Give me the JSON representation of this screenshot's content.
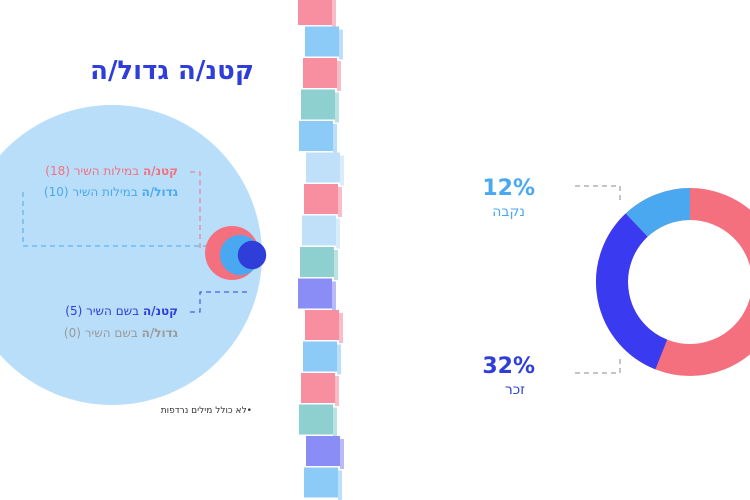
{
  "title": "קטנ/ה גדול/ה",
  "circles": [
    {
      "bold": "קטנ/ה",
      "text": " במילות השיר ",
      "count": 18,
      "count_label": "(18)",
      "color": "#f4707f"
    },
    {
      "bold": "גדול/ה",
      "text": " במילות השיר ",
      "count": 10,
      "count_label": "(10)",
      "color": "#4aa8f0"
    },
    {
      "bold": "קטנ/ה",
      "text": " בשם השיר ",
      "count": 5,
      "count_label": "(5)",
      "color": "#2f3ed8"
    },
    {
      "bold": "גדול/ה",
      "text": " בשם השיר ",
      "count": 0,
      "count_label": "(0)",
      "color": "#9a9a9a"
    }
  ],
  "footnote": "•לא כולל מילים נרדפות",
  "donut": {
    "segments": [
      {
        "label": "נקבה",
        "value": 12,
        "value_label": "12%",
        "color": "#4aa8f0"
      },
      {
        "label": "זכר",
        "value": 32,
        "value_label": "32%",
        "color": "#3a3af0"
      }
    ]
  }
}
